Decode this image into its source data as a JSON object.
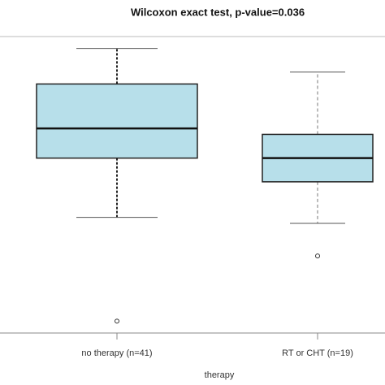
{
  "chart_data": {
    "type": "box",
    "title": "Wilcoxon exact test, p-value=0.036",
    "x_label": "therapy",
    "categories": [
      "no therapy (n=41)",
      "RT or CHT (n=19)"
    ],
    "boxes": [
      {
        "whisker_low": 39,
        "q1": 59,
        "median": 69,
        "q3": 84,
        "whisker_high": 96,
        "outliers": [
          4
        ]
      },
      {
        "whisker_low": 37,
        "q1": 51,
        "median": 59,
        "q3": 67,
        "whisker_high": 88,
        "outliers": [
          26
        ]
      }
    ],
    "color": "#b7dfea",
    "ylim": [
      0,
      100
    ]
  }
}
